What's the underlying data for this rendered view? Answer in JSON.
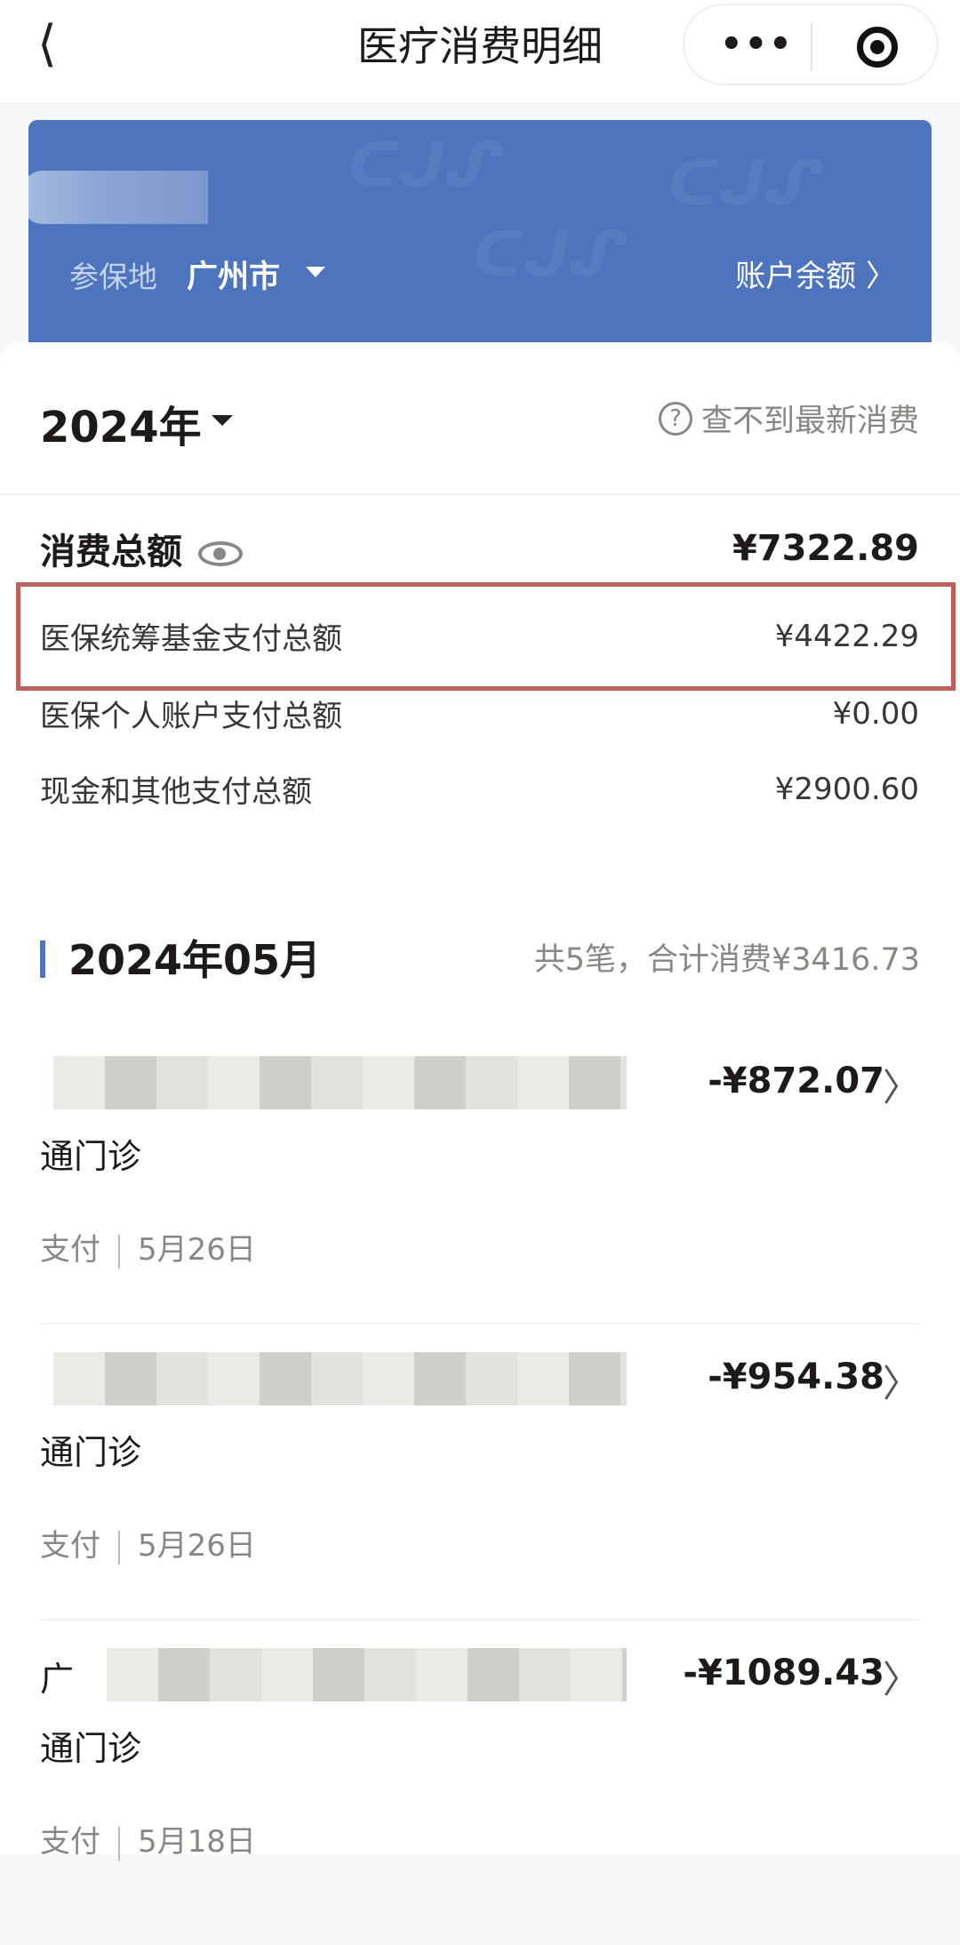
{
  "nav": {
    "title": "医疗消费明细",
    "back_icon": "chevron-left",
    "more_icon": "•••",
    "target_icon": "target"
  },
  "banner": {
    "location_label": "参保地",
    "city": "广州市",
    "balance_link": "账户余额 〉",
    "color": "#4d74bd"
  },
  "summary": {
    "year": "2024年",
    "help_text": "查不到最新消费",
    "total_label": "消费总额",
    "total_value": "¥7322.89",
    "rows": [
      {
        "label": "医保统筹基金支付总额",
        "value": "¥4422.29",
        "highlighted": true
      },
      {
        "label": "医保个人账户支付总额",
        "value": "¥0.00"
      },
      {
        "label": "现金和其他支付总额",
        "value": "¥2900.60"
      }
    ]
  },
  "month": {
    "label": "2024年05月",
    "summary": "共5笔，合计消费¥3416.73"
  },
  "items": [
    {
      "prefix": "",
      "name_suffix": "通门诊",
      "amount": "-¥872.07",
      "type": "支付",
      "date": "5月26日"
    },
    {
      "prefix": "",
      "name_suffix": "通门诊",
      "amount": "-¥954.38",
      "type": "支付",
      "date": "5月26日"
    },
    {
      "prefix": "广",
      "name_suffix": "通门诊",
      "amount": "-¥1089.43",
      "type": "支付",
      "date": "5月18日"
    }
  ]
}
